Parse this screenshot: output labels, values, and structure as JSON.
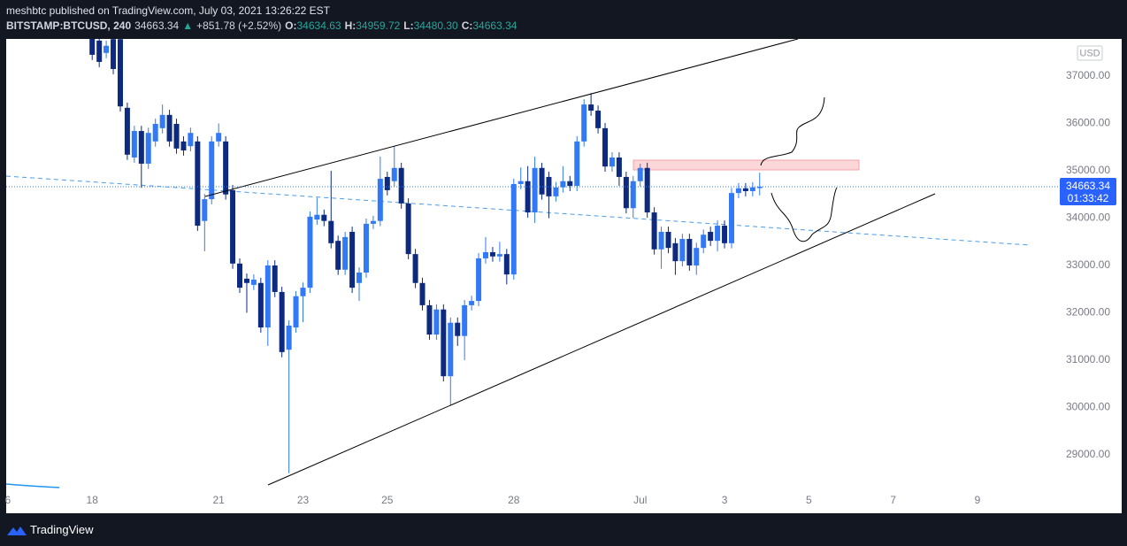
{
  "header": {
    "publisher": "meshbtc published on TradingView.com, July 03, 2021 13:26:22 EST",
    "symbol": "BITSTAMP:BTCUSD, 240",
    "last": "34663.34",
    "arrow": "▲",
    "change": "+851.78 (+2.52%)",
    "ohlc": [
      {
        "key": "O:",
        "value": "34634.63"
      },
      {
        "key": "H:",
        "value": "34959.72"
      },
      {
        "key": "L:",
        "value": "34480.30"
      },
      {
        "key": "C:",
        "value": "34663.34"
      }
    ]
  },
  "footer": {
    "brand": "TradingView"
  },
  "chart_data": {
    "type": "candlestick",
    "currency": "USD",
    "up_color": "#3179f5",
    "down_color": "#0d2a80",
    "grid": false,
    "last_label": "34663.34",
    "countdown": "01:33:42",
    "x": [
      2,
      2.167,
      2.333,
      2.5,
      2.667,
      2.833,
      3,
      3.167,
      3.333,
      3.5,
      3.667,
      3.833,
      4,
      4.167,
      4.333,
      4.5,
      4.667,
      4.833,
      5,
      5.167,
      5.333,
      5.5,
      5.667,
      5.833,
      6,
      6.167,
      6.333,
      6.5,
      6.667,
      6.833,
      7,
      7.167,
      7.333,
      7.5,
      7.667,
      7.833,
      8,
      8.167,
      8.333,
      8.5,
      8.667,
      8.833,
      9,
      9.167,
      9.333,
      9.5,
      9.667,
      9.833,
      10,
      10.167,
      10.333,
      10.5,
      10.667,
      10.833,
      11,
      11.167,
      11.333,
      11.5,
      11.667,
      11.833,
      12,
      12.167,
      12.333,
      12.5,
      12.667,
      12.833,
      13,
      13.167,
      13.333,
      13.5,
      13.667,
      13.833,
      14,
      14.167,
      14.333,
      14.5,
      14.667,
      14.833,
      15,
      15.167,
      15.333,
      15.5,
      15.667,
      15.833,
      16,
      16.167,
      16.333,
      16.5,
      16.667,
      16.833,
      17,
      17.167,
      17.333,
      17.5,
      17.667,
      17.833
    ],
    "open": [
      37790,
      37750,
      37490,
      37780,
      37780,
      36330,
      35280,
      35840,
      35150,
      35620,
      35900,
      36180,
      35990,
      35620,
      35520,
      35620,
      33940,
      34400,
      35620,
      35620,
      34590,
      33040,
      32720,
      32590,
      32630,
      31690,
      33000,
      32440,
      31220,
      31690,
      32350,
      32530,
      33970,
      34070,
      33940,
      33520,
      32910,
      33710,
      32630,
      32850,
      33880,
      33940,
      34870,
      34780,
      35060,
      34310,
      33240,
      32630,
      32160,
      31540,
      32070,
      30660,
      31790,
      31510,
      32160,
      32250,
      33150,
      33280,
      33190,
      33240,
      32810,
      34720,
      34780,
      34120,
      35060,
      34870,
      34460,
      34650,
      34780,
      34680,
      35620,
      36400,
      36270,
      35900,
      35090,
      35280,
      34870,
      34210,
      34780,
      35060,
      34120,
      33340,
      33710,
      33470,
      33090,
      33560,
      33000,
      33370,
      33710,
      33520,
      33840,
      33470,
      34530,
      34630,
      34570,
      34634.63
    ],
    "high": [
      37850,
      37850,
      37750,
      37850,
      37850,
      36440,
      35950,
      35950,
      35910,
      36100,
      36400,
      36290,
      36100,
      35730,
      35910,
      35730,
      34510,
      35730,
      36000,
      35730,
      34700,
      33150,
      32830,
      32810,
      32740,
      33110,
      33110,
      32550,
      31840,
      32460,
      32640,
      34140,
      34430,
      34180,
      35000,
      33630,
      33710,
      33820,
      32960,
      33990,
      34050,
      35300,
      34980,
      35520,
      35170,
      34420,
      33350,
      32740,
      32270,
      32180,
      32180,
      31900,
      31900,
      32270,
      32360,
      33260,
      33600,
      33390,
      33500,
      33350,
      34830,
      35070,
      35100,
      35300,
      35170,
      34980,
      34760,
      35100,
      34890,
      35730,
      36510,
      36640,
      36380,
      36010,
      35390,
      35390,
      34980,
      34890,
      35150,
      35170,
      34230,
      33820,
      33820,
      33580,
      33670,
      33670,
      33480,
      33760,
      33820,
      33950,
      33950,
      34640,
      34740,
      34740,
      34760,
      34959.72
    ],
    "low": [
      37340,
      37190,
      37380,
      37040,
      36250,
      35230,
      35170,
      34640,
      35040,
      35510,
      35790,
      35510,
      35360,
      35320,
      35410,
      33730,
      33300,
      34290,
      35510,
      34390,
      32930,
      32420,
      32000,
      32480,
      31580,
      31300,
      32330,
      31060,
      28610,
      31580,
      31800,
      32420,
      33860,
      33830,
      33360,
      32800,
      32800,
      32420,
      32250,
      32740,
      33770,
      33830,
      34480,
      34670,
      34200,
      33130,
      32520,
      32050,
      31430,
      31430,
      30550,
      30050,
      31300,
      31000,
      32050,
      32140,
      33040,
      33080,
      33080,
      32600,
      32700,
      34610,
      34010,
      33900,
      34390,
      34000,
      34350,
      34540,
      34570,
      34570,
      35510,
      36160,
      35790,
      34980,
      34980,
      34680,
      34100,
      34000,
      34670,
      34010,
      33230,
      32930,
      33260,
      32800,
      32980,
      32890,
      32800,
      33260,
      33410,
      33300,
      33360,
      33360,
      34420,
      34460,
      34460,
      34480.3
    ],
    "close": [
      37450,
      37300,
      37640,
      37150,
      36360,
      35340,
      35840,
      35150,
      35800,
      35990,
      36180,
      35620,
      35470,
      35430,
      35800,
      33840,
      34400,
      35620,
      35800,
      34500,
      33040,
      32530,
      32630,
      32700,
      31690,
      33000,
      32440,
      31170,
      31730,
      32350,
      32530,
      34030,
      34070,
      33940,
      33470,
      32910,
      33600,
      32530,
      32850,
      33880,
      33940,
      34830,
      34590,
      35060,
      34310,
      33240,
      32630,
      32160,
      31540,
      32070,
      30660,
      31790,
      31510,
      32160,
      32250,
      33150,
      33280,
      33190,
      33240,
      32810,
      34720,
      34780,
      34120,
      35060,
      34500,
      34460,
      34650,
      34780,
      34680,
      35620,
      36400,
      36270,
      35900,
      35090,
      35280,
      34870,
      34210,
      34780,
      35060,
      34120,
      33340,
      33710,
      33370,
      33090,
      33560,
      33000,
      33370,
      33650,
      33520,
      33840,
      33470,
      34530,
      34630,
      34570,
      34650,
      34663.34
    ],
    "xlim": [
      -0.04,
      24.91
    ],
    "xticks": [
      {
        "value": 0,
        "label": "6"
      },
      {
        "value": 2,
        "label": "18"
      },
      {
        "value": 5,
        "label": "21"
      },
      {
        "value": 7,
        "label": "23"
      },
      {
        "value": 9,
        "label": "25"
      },
      {
        "value": 12,
        "label": "28"
      },
      {
        "value": 15,
        "label": "Jul"
      },
      {
        "value": 17,
        "label": "3"
      },
      {
        "value": 19,
        "label": "5"
      },
      {
        "value": 21,
        "label": "7"
      },
      {
        "value": 23,
        "label": "9"
      }
    ],
    "ylim": [
      28270,
      37785
    ],
    "yticks": [
      {
        "value": 29000,
        "label": "29000.00"
      },
      {
        "value": 30000,
        "label": "30000.00"
      },
      {
        "value": 31000,
        "label": "31000.00"
      },
      {
        "value": 32000,
        "label": "32000.00"
      },
      {
        "value": 33000,
        "label": "33000.00"
      },
      {
        "value": 34000,
        "label": "34000.00"
      },
      {
        "value": 35000,
        "label": "35000.00"
      },
      {
        "value": 36000,
        "label": "36000.00"
      },
      {
        "value": 37000,
        "label": "37000.00"
      }
    ]
  }
}
